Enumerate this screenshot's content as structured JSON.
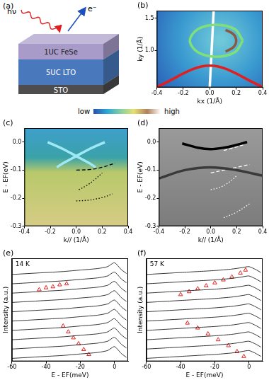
{
  "schematic": {
    "title": "(a)",
    "photon": "hν",
    "electron": "e⁻",
    "layers": [
      {
        "label": "1UC FeSe",
        "color": "#a89bc9"
      },
      {
        "label": "5UC LTO",
        "color": "#4a78bd"
      },
      {
        "label": "STO",
        "color": "#4d4d4d"
      }
    ]
  },
  "colorbar": {
    "labels": [
      "low",
      "high"
    ],
    "colors": [
      "#2a4fb0",
      "#2aa5d8",
      "#7fd0a0",
      "#e6e070",
      "#b0805a",
      "#ffffff"
    ]
  },
  "chart_data": [
    {
      "title": "(b)",
      "type": "line",
      "x_label": "kx (1/Å)",
      "y_label": "ky (1/Å)",
      "xlim": [
        -0.4,
        0.4
      ],
      "xticks": [
        -0.4,
        -0.2,
        {
          "value": 0,
          "label": "0.0"
        },
        0.2,
        0.4
      ],
      "ylim": [
        0.42,
        1.62
      ],
      "yticks": [
        {
          "value": 1,
          "label": "1.0"
        },
        1.5
      ],
      "grid": false,
      "series": [
        {
          "x": [
            0.25,
            0.19,
            0.05,
            -0.09,
            -0.15,
            -0.09,
            0.05,
            0.19,
            0.25
          ],
          "values": [
            1.15,
            1.33,
            1.4,
            1.33,
            1.15,
            0.97,
            0.9,
            0.97,
            1.15
          ],
          "color": "#7fe07a",
          "line_style": "solid",
          "marker": "none"
        },
        {
          "x": [
            0.12,
            0.18,
            0.2,
            0.18,
            0.12
          ],
          "values": [
            0.98,
            1.05,
            1.15,
            1.25,
            1.32
          ],
          "color": "#8b5a3c",
          "line_style": "solid",
          "marker": "none"
        },
        {
          "x": [
            -0.4,
            0,
            0.4
          ],
          "values": [
            0.43,
            0.76,
            0.43
          ],
          "color": "#e02020",
          "line_style": "solid",
          "marker": "none"
        },
        {
          "x": [
            0,
            0.03
          ],
          "values": [
            0.42,
            1.62
          ],
          "color": "#ffffff",
          "line_style": "solid",
          "marker": "none"
        }
      ]
    },
    {
      "title": "(c)",
      "type": "line",
      "x_label": "k// (1/Å)",
      "y_label": "E - EF(eV)",
      "xlim": [
        -0.4,
        0.4
      ],
      "xticks": [
        -0.4,
        -0.2,
        {
          "value": 0,
          "label": "0.0"
        },
        0.2,
        0.4
      ],
      "ylim": [
        -0.3,
        0.05
      ],
      "yticks": [
        -0.3,
        -0.2,
        -0.1,
        {
          "value": 0,
          "label": "0.0"
        }
      ],
      "grid": false,
      "series": [
        {
          "x": [
            -0.22,
            -0.1,
            0,
            0.1,
            0.15
          ],
          "values": [
            0,
            -0.025,
            -0.05,
            -0.075,
            -0.09
          ],
          "color": "#9fe8f5",
          "line_style": "solid",
          "marker": "none"
        },
        {
          "x": [
            -0.15,
            -0.1,
            0,
            0.1,
            0.22
          ],
          "values": [
            -0.09,
            -0.075,
            -0.05,
            -0.025,
            0
          ],
          "color": "#9fe8f5",
          "line_style": "solid",
          "marker": "none"
        },
        {
          "x": [
            0,
            0.1,
            0.2,
            0.3
          ],
          "values": [
            -0.1,
            -0.098,
            -0.09,
            -0.075
          ],
          "color": "#000000",
          "line_style": "dashed",
          "marker": "none"
        },
        {
          "x": [
            0.02,
            0.08,
            0.14,
            0.2
          ],
          "values": [
            -0.17,
            -0.155,
            -0.135,
            -0.11
          ],
          "color": "#000000",
          "line_style": "dotted",
          "marker": "none"
        },
        {
          "x": [
            0,
            0.1,
            0.2,
            0.28
          ],
          "values": [
            -0.21,
            -0.207,
            -0.198,
            -0.185
          ],
          "color": "#000000",
          "line_style": "dotted",
          "marker": "none"
        }
      ]
    },
    {
      "title": "(d)",
      "type": "line",
      "x_label": "k// (1/Å)",
      "y_label": "E - EF(eV)",
      "xlim": [
        -0.4,
        0.4
      ],
      "xticks": [
        -0.4,
        -0.2,
        {
          "value": 0,
          "label": "0.0"
        },
        0.2,
        0.4
      ],
      "ylim": [
        -0.3,
        0.05
      ],
      "yticks": [
        -0.3,
        -0.2,
        -0.1,
        {
          "value": 0,
          "label": "0.0"
        }
      ],
      "grid": false,
      "series": [
        {
          "x": [
            -0.4,
            -0.2,
            0,
            0.2,
            0.4
          ],
          "values": [
            -0.13,
            -0.1,
            -0.09,
            -0.1,
            -0.12
          ],
          "color": "#3a3a3a",
          "line_style": "solid",
          "marker": "none"
        },
        {
          "x": [
            -0.22,
            -0.1,
            0,
            0.1,
            0.2,
            0.28
          ],
          "values": [
            -0.005,
            -0.02,
            -0.025,
            -0.02,
            -0.01,
            0
          ],
          "color": "#000000",
          "line_style": "solid",
          "marker": "none"
        },
        {
          "x": [
            0.1,
            0.18,
            0.25
          ],
          "values": [
            -0.03,
            -0.02,
            -0.01
          ],
          "color": "#ffffff",
          "line_style": "dashed",
          "marker": "none"
        },
        {
          "x": [
            0,
            0.1,
            0.2,
            0.3
          ],
          "values": [
            -0.11,
            -0.1,
            -0.09,
            -0.08
          ],
          "color": "#ffffff",
          "line_style": "dashed",
          "marker": "none"
        },
        {
          "x": [
            0,
            0.08,
            0.15,
            0.2
          ],
          "values": [
            -0.17,
            -0.16,
            -0.14,
            -0.12
          ],
          "color": "#ffffff",
          "line_style": "dotted",
          "marker": "none"
        },
        {
          "x": [
            0.1,
            0.2,
            0.3
          ],
          "values": [
            -0.27,
            -0.25,
            -0.22
          ],
          "color": "#ffffff",
          "line_style": "dotted",
          "marker": "none"
        }
      ]
    },
    {
      "title": "(e)",
      "type": "line",
      "x_label": "E - EF(meV)",
      "y_label": "Intensity (a.u.)",
      "xlim": [
        -60,
        8
      ],
      "xticks": [
        -60,
        -40,
        -20,
        0
      ],
      "ylim": [
        0,
        10.5
      ],
      "grid": false,
      "tick_labels": "x",
      "annotations": [
        "14 K"
      ],
      "x": [
        -60,
        -50,
        -40,
        -30,
        -20,
        -10,
        -4,
        0,
        4,
        7
      ],
      "series": [
        {
          "values": [
            0.3,
            0.4,
            0.5,
            0.6,
            0.75,
            0.9,
            1.1,
            1.5,
            0.8,
            0.4
          ],
          "color": "#000000",
          "line_style": "solid",
          "marker": "none"
        },
        {
          "values": [
            1.25,
            1.35,
            1.45,
            1.55,
            1.7,
            1.85,
            2.05,
            2.45,
            1.75,
            1.35
          ],
          "color": "#000000",
          "line_style": "solid",
          "marker": "none"
        },
        {
          "values": [
            2.2,
            2.3,
            2.4,
            2.5,
            2.65,
            2.8,
            3.0,
            3.4,
            2.7,
            2.3
          ],
          "color": "#000000",
          "line_style": "solid",
          "marker": "none"
        },
        {
          "values": [
            3.15,
            3.25,
            3.35,
            3.45,
            3.6,
            3.75,
            3.95,
            4.35,
            3.65,
            3.25
          ],
          "color": "#000000",
          "line_style": "solid",
          "marker": "none"
        },
        {
          "values": [
            4.1,
            4.2,
            4.3,
            4.4,
            4.55,
            4.7,
            4.9,
            5.3,
            4.6,
            4.2
          ],
          "color": "#000000",
          "line_style": "solid",
          "marker": "none"
        },
        {
          "values": [
            5.05,
            5.15,
            5.25,
            5.35,
            5.5,
            5.65,
            5.85,
            6.25,
            5.55,
            5.15
          ],
          "color": "#000000",
          "line_style": "solid",
          "marker": "none"
        },
        {
          "values": [
            6.0,
            6.1,
            6.2,
            6.3,
            6.45,
            6.6,
            6.8,
            7.2,
            6.5,
            6.1
          ],
          "color": "#000000",
          "line_style": "solid",
          "marker": "none"
        },
        {
          "values": [
            6.95,
            7.05,
            7.15,
            7.25,
            7.4,
            7.55,
            7.75,
            8.15,
            7.45,
            7.05
          ],
          "color": "#000000",
          "line_style": "solid",
          "marker": "none"
        },
        {
          "values": [
            7.9,
            8.0,
            8.1,
            8.2,
            8.35,
            8.5,
            8.7,
            9.1,
            8.4,
            8.0
          ],
          "color": "#000000",
          "line_style": "solid",
          "marker": "none"
        },
        {
          "values": [
            8.85,
            8.95,
            9.05,
            9.15,
            9.3,
            9.45,
            9.65,
            10.05,
            9.35,
            8.95
          ],
          "color": "#000000",
          "line_style": "solid",
          "marker": "none"
        },
        {
          "x": [
            -44,
            -40,
            -36,
            -32,
            -28
          ],
          "values": [
            7.3,
            7.5,
            7.6,
            7.8,
            7.9
          ],
          "color": "#e02020",
          "marker": "triangle"
        },
        {
          "x": [
            -30,
            -27,
            -24,
            -21,
            -18,
            -15
          ],
          "values": [
            3.6,
            3.0,
            2.4,
            1.8,
            1.2,
            0.7
          ],
          "color": "#e02020",
          "marker": "triangle"
        }
      ]
    },
    {
      "title": "(f)",
      "type": "line",
      "x_label": "E - EF(meV)",
      "y_label": "Intensity (a.u.)",
      "xlim": [
        -60,
        8
      ],
      "xticks": [
        -60,
        -40,
        -20,
        0
      ],
      "ylim": [
        0,
        10.5
      ],
      "grid": false,
      "tick_labels": "x",
      "annotations": [
        "57 K"
      ],
      "x": [
        -60,
        -50,
        -40,
        -30,
        -20,
        -10,
        -4,
        0,
        4,
        7
      ],
      "series": [
        {
          "values": [
            0.3,
            0.4,
            0.5,
            0.6,
            0.7,
            0.85,
            1.0,
            1.1,
            0.8,
            0.5
          ],
          "color": "#000000",
          "line_style": "solid",
          "marker": "none"
        },
        {
          "values": [
            1.25,
            1.35,
            1.45,
            1.55,
            1.65,
            1.8,
            1.95,
            2.05,
            1.75,
            1.45
          ],
          "color": "#000000",
          "line_style": "solid",
          "marker": "none"
        },
        {
          "values": [
            2.2,
            2.3,
            2.4,
            2.5,
            2.6,
            2.75,
            2.9,
            3.0,
            2.7,
            2.4
          ],
          "color": "#000000",
          "line_style": "solid",
          "marker": "none"
        },
        {
          "values": [
            3.15,
            3.25,
            3.35,
            3.45,
            3.55,
            3.7,
            3.85,
            3.95,
            3.65,
            3.35
          ],
          "color": "#000000",
          "line_style": "solid",
          "marker": "none"
        },
        {
          "values": [
            4.1,
            4.2,
            4.3,
            4.4,
            4.5,
            4.65,
            4.8,
            4.9,
            4.6,
            4.3
          ],
          "color": "#000000",
          "line_style": "solid",
          "marker": "none"
        },
        {
          "values": [
            5.05,
            5.15,
            5.25,
            5.35,
            5.45,
            5.6,
            5.75,
            5.85,
            5.55,
            5.25
          ],
          "color": "#000000",
          "line_style": "solid",
          "marker": "none"
        },
        {
          "values": [
            6.0,
            6.1,
            6.2,
            6.3,
            6.4,
            6.55,
            6.7,
            6.8,
            6.5,
            6.2
          ],
          "color": "#000000",
          "line_style": "solid",
          "marker": "none"
        },
        {
          "values": [
            6.95,
            7.05,
            7.15,
            7.25,
            7.35,
            7.5,
            7.65,
            7.75,
            7.45,
            7.15
          ],
          "color": "#000000",
          "line_style": "solid",
          "marker": "none"
        },
        {
          "values": [
            7.9,
            8.0,
            8.1,
            8.2,
            8.3,
            8.45,
            8.6,
            8.7,
            8.4,
            8.1
          ],
          "color": "#000000",
          "line_style": "solid",
          "marker": "none"
        },
        {
          "values": [
            8.85,
            8.95,
            9.05,
            9.15,
            9.25,
            9.4,
            9.55,
            9.65,
            9.35,
            9.05
          ],
          "color": "#000000",
          "line_style": "solid",
          "marker": "none"
        },
        {
          "x": [
            -40,
            -35,
            -30,
            -25,
            -20,
            -15,
            -10,
            -5,
            -2
          ],
          "values": [
            6.8,
            7.1,
            7.4,
            7.7,
            8.0,
            8.3,
            8.6,
            9.0,
            9.3
          ],
          "color": "#e02020",
          "marker": "triangle"
        },
        {
          "x": [
            -36,
            -30,
            -24,
            -18,
            -12,
            -7,
            -3
          ],
          "values": [
            3.9,
            3.4,
            2.8,
            2.2,
            1.6,
            1.0,
            0.5
          ],
          "color": "#e02020",
          "marker": "triangle"
        }
      ]
    }
  ]
}
